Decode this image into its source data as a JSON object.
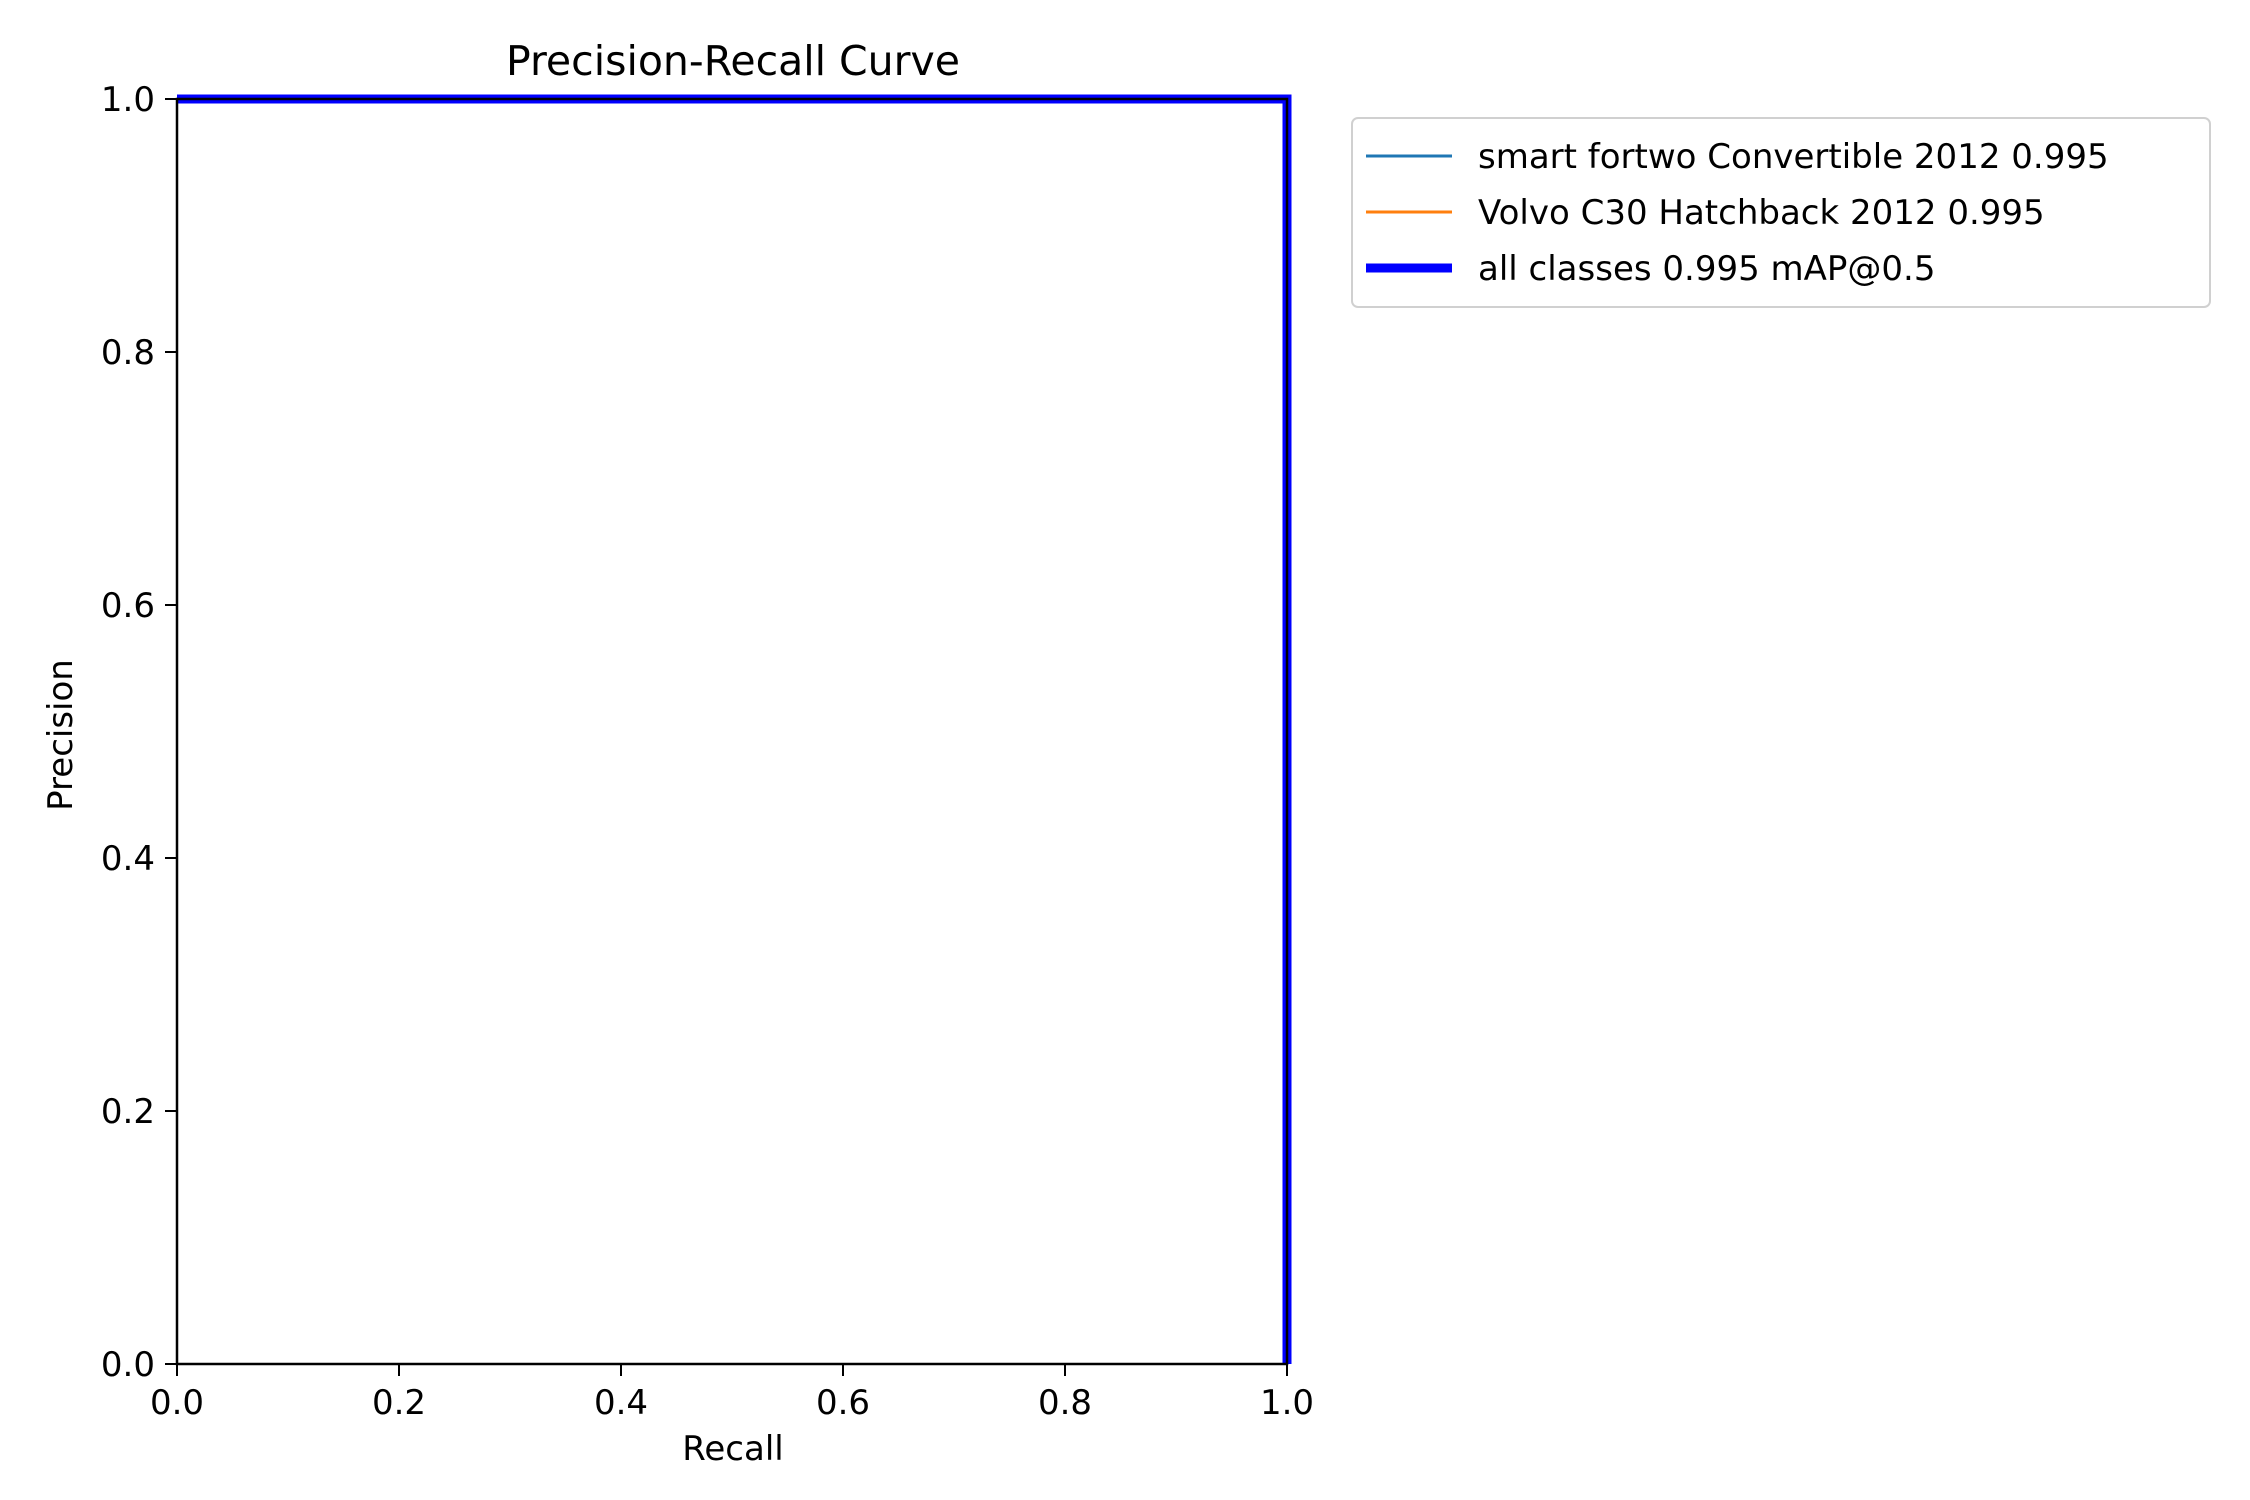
{
  "chart_data": {
    "type": "line",
    "title": "Precision-Recall Curve",
    "xlabel": "Recall",
    "ylabel": "Precision",
    "xlim": [
      0.0,
      1.0
    ],
    "ylim": [
      0.0,
      1.0
    ],
    "xticks": [
      "0.0",
      "0.2",
      "0.4",
      "0.6",
      "0.8",
      "1.0"
    ],
    "yticks": [
      "0.0",
      "0.2",
      "0.4",
      "0.6",
      "0.8",
      "1.0"
    ],
    "grid": false,
    "legend_position": "outside-top-right",
    "series": [
      {
        "name": "smart fortwo Convertible 2012 0.995",
        "color": "#1f77b4",
        "style": "thin",
        "x": [
          0.0,
          1.0,
          1.0
        ],
        "y": [
          1.0,
          1.0,
          0.0
        ]
      },
      {
        "name": "Volvo C30 Hatchback 2012 0.995",
        "color": "#ff7f0e",
        "style": "thin",
        "x": [
          0.0,
          1.0,
          1.0
        ],
        "y": [
          1.0,
          1.0,
          0.0
        ]
      },
      {
        "name": "all classes 0.995 mAP@0.5",
        "color": "#0000ff",
        "style": "thick",
        "x": [
          0.0,
          1.0,
          1.0
        ],
        "y": [
          1.0,
          1.0,
          0.0
        ]
      }
    ]
  }
}
